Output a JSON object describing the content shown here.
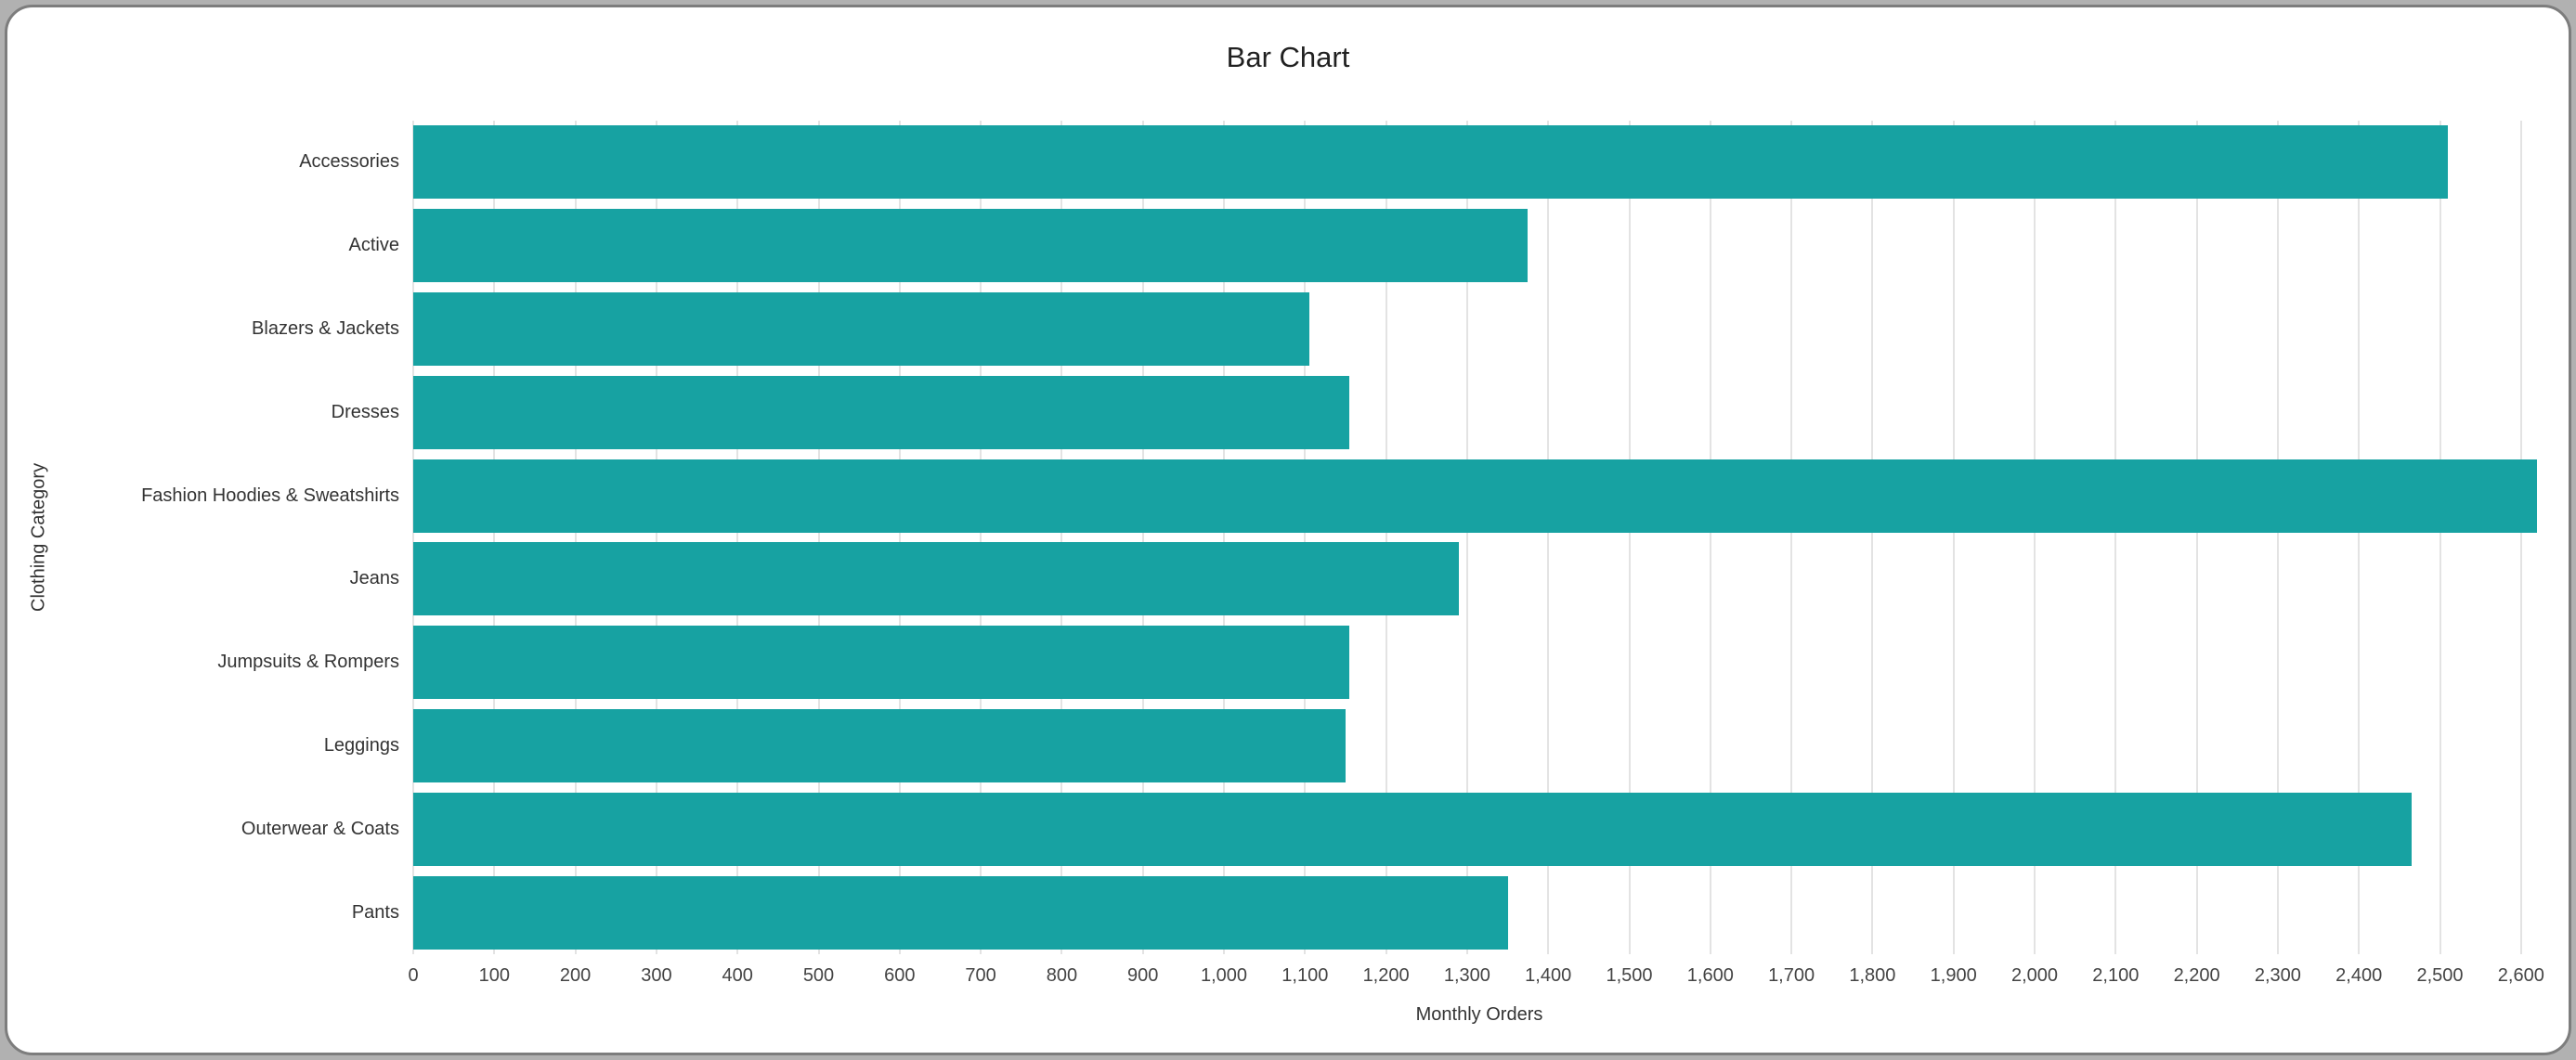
{
  "chart": {
    "title": "Bar Chart",
    "xlabel": "Monthly Orders",
    "ylabel": "Clothing Category"
  },
  "chart_data": {
    "type": "bar",
    "orientation": "horizontal",
    "title": "Bar Chart",
    "xlabel": "Monthly Orders",
    "ylabel": "Clothing Category",
    "categories": [
      "Accessories",
      "Active",
      "Blazers & Jackets",
      "Dresses",
      "Fashion Hoodies & Sweatshirts",
      "Jeans",
      "Jumpsuits & Rompers",
      "Leggings",
      "Outerwear & Coats",
      "Pants"
    ],
    "values": [
      2510,
      1375,
      1105,
      1155,
      2620,
      1290,
      1155,
      1150,
      2465,
      1350
    ],
    "xlim": [
      0,
      2630
    ],
    "xtick_step": 100,
    "xtick_max": 2600,
    "grid": true,
    "legend": "none",
    "bar_color": "#17a2a2",
    "gridline_color": "#e3e3e3"
  }
}
